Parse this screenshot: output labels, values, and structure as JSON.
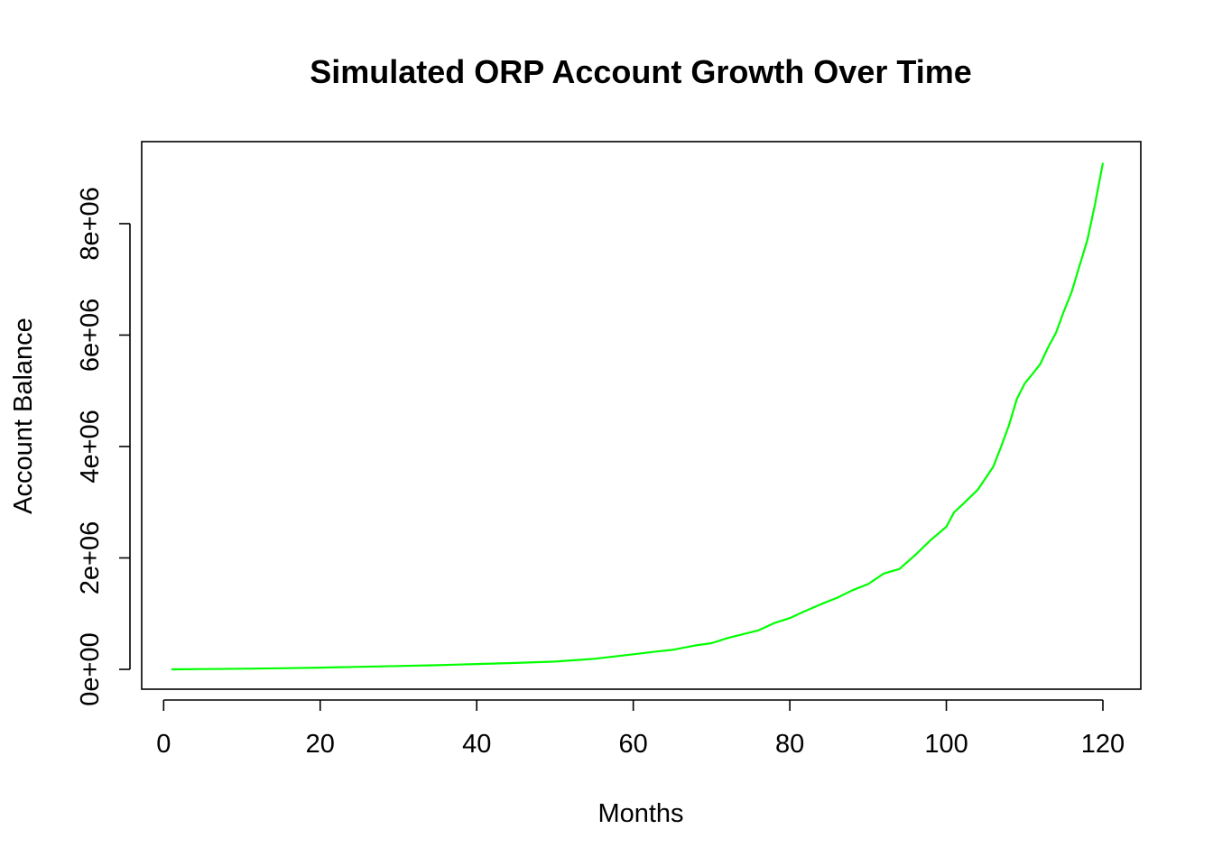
{
  "chart_data": {
    "type": "line",
    "title": "Simulated ORP Account Growth Over Time",
    "xlabel": "Months",
    "ylabel": "Account Balance",
    "xlim": [
      1,
      120
    ],
    "ylim": [
      0,
      9100000
    ],
    "x_ticks": [
      0,
      20,
      40,
      60,
      80,
      100,
      120
    ],
    "x_tick_labels": [
      "0",
      "20",
      "40",
      "60",
      "80",
      "100",
      "120"
    ],
    "y_ticks": [
      0,
      2000000,
      4000000,
      6000000,
      8000000
    ],
    "y_tick_labels": [
      "0e+00",
      "2e+06",
      "4e+06",
      "6e+06",
      "8e+06"
    ],
    "grid": false,
    "legend": "none",
    "line_color": "#00ff00",
    "series": [
      {
        "x": [
          1,
          5,
          10,
          15,
          20,
          25,
          30,
          35,
          40,
          45,
          50,
          55,
          60,
          63,
          65,
          68,
          70,
          72,
          74,
          76,
          78,
          80,
          82,
          84,
          86,
          88,
          90,
          92,
          94,
          96,
          98,
          100,
          101,
          102,
          104,
          106,
          107,
          108,
          109,
          110,
          111,
          112,
          113,
          114,
          115,
          116,
          117,
          118,
          119,
          120
        ],
        "y": [
          0,
          5000,
          12000,
          20000,
          30000,
          45000,
          60000,
          75000,
          95000,
          115000,
          140000,
          190000,
          270000,
          320000,
          350000,
          430000,
          470000,
          560000,
          630000,
          700000,
          830000,
          920000,
          1050000,
          1170000,
          1280000,
          1420000,
          1530000,
          1720000,
          1800000,
          2050000,
          2320000,
          2560000,
          2820000,
          2950000,
          3220000,
          3640000,
          4000000,
          4380000,
          4850000,
          5130000,
          5300000,
          5480000,
          5780000,
          6040000,
          6420000,
          6770000,
          7240000,
          7700000,
          8350000,
          9090000
        ]
      }
    ]
  }
}
